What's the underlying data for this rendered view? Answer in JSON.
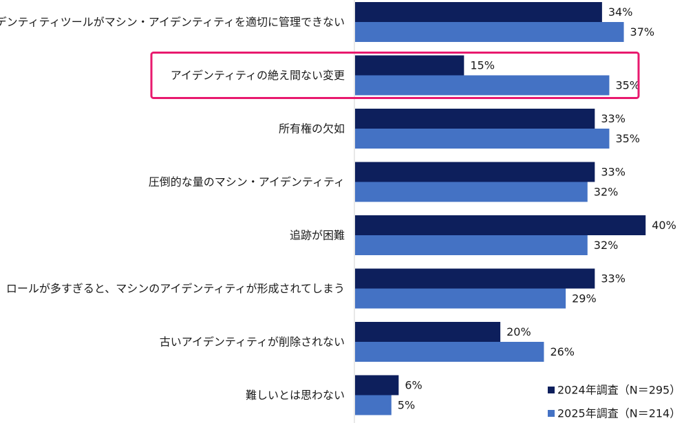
{
  "chart_data": {
    "type": "bar",
    "orientation": "horizontal",
    "categories": [
      "アイデンティティツールがマシン・アイデンティティを適切に管理できない",
      "アイデンティティの絶え間ない変更",
      "所有権の欠如",
      "圧倒的な量のマシン・アイデンティティ",
      "追跡が困難",
      "ロールが多すぎると、マシンのアイデンティティが形成されてしまう",
      "古いアイデンティティが削除されない",
      "難しいとは思わない"
    ],
    "series": [
      {
        "name": "2024年調査（N＝295）",
        "color": "#0d1f5c",
        "values": [
          34,
          15,
          33,
          33,
          40,
          33,
          20,
          6
        ],
        "labels": [
          "34%",
          "15%",
          "33%",
          "33%",
          "40%",
          "33%",
          "20%",
          "6%"
        ]
      },
      {
        "name": "2025年調査（N＝214）",
        "color": "#4472c4",
        "values": [
          37,
          35,
          35,
          32,
          32,
          29,
          26,
          5
        ],
        "labels": [
          "37%",
          "35%",
          "35%",
          "32%",
          "32%",
          "29%",
          "26%",
          "5%"
        ]
      }
    ],
    "xlim": [
      0,
      45
    ],
    "highlight_category_index": 1,
    "highlight_color": "#e8196e",
    "legend_position": "bottom-right",
    "grid": false
  }
}
